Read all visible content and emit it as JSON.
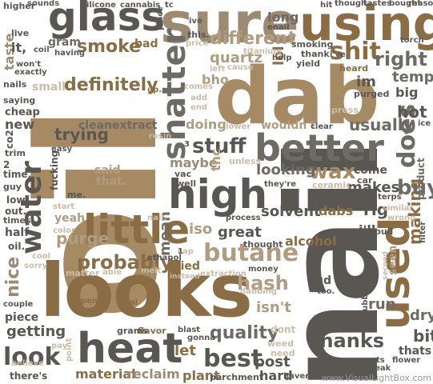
{
  "words": {
    "oil": "oil",
    "nail": "nail",
    "dab": "dab",
    "looks": "looks",
    "sure": "sure",
    "glass": "glass",
    "using": "using",
    "heat": "heat",
    "used": "used",
    "high": "high",
    "better": "better",
    "little": "little",
    "water": "water",
    "shatter": "shatter",
    "look": "look",
    "butane": "butane",
    "best": "best",
    "does": "does",
    "different": "different",
    "shit": "shit",
    "stuff": "stuff",
    "definitely": "definitely",
    "probably": "probably",
    "smoke": "smoke",
    "right": "right",
    "thanks": "thanks",
    "wax": "wax",
    "quality": "quality",
    "hash": "hash",
    "nice": "nice",
    "purge": "purge",
    "making": "making",
    "buy": "buy",
    "material": "material",
    "getting": "getting",
    "trying": "trying",
    "usually": "usually",
    "hot": "hot",
    "bit": "bit",
    "temp": "temp",
    "makes": "makes",
    "rig": "rig",
    "dabs": "dabs",
    "alcohol": "alcohol",
    "looking": "looking",
    "great": "great",
    "post": "post",
    "hard": "hard",
    "plant": "plant",
    "let": "let",
    "reclaim": "reclaim",
    "iso": "iso",
    "mean": "mean",
    "maybe": "maybe",
    "said": "said",
    "that": "that.",
    "doing": "doing",
    "bho": "bho",
    "im": "im",
    "quartz": "quartz",
    "lol": "lol",
    "long": "long",
    "gram": "gram",
    "bad": "bad",
    "clean": "clean",
    "extract": "extract",
    "solvent": "solvent",
    "dont": "dont",
    "isnt": "isn't",
    "bud": "bud",
    "run": "run",
    "dry": "dry",
    "thats": "thats",
    "piece": "piece",
    "theres": "there's",
    "wouldnt": "wouldn't",
    "new": "new",
    "taste": "taste",
    "it": "it,",
    "seen": "seen",
    "ill": "i'll",
    "tried": "tried",
    "thc": "thc",
    "yeah": "yeah",
    "half": "half",
    "out": "out.",
    "times": "times",
    "low": "low",
    "co2": "co2",
    "trim": "trim",
    "saying": "saying",
    "cheap": "cheap",
    "small": "small",
    "nails": "nails",
    "higher": "higher",
    "live": "live",
    "sounds": "sounds",
    "silicone": "silicone",
    "cannabis": "cannabis",
    "hit": "hit",
    "though": "though.",
    "tastes": "tastes",
    "bought": "bought",
    "reason": "reason",
    "torch": "torch",
    "smoking": "smoking",
    "thank": "thank",
    "ive": "i've",
    "heard": "heard",
    "purged": "purged",
    "lower": "lower",
    "clear": "clear",
    "press": "press",
    "vac": "vac",
    "well": "well",
    "unless": "unless",
    "ceramic": "ceramic",
    "theyre": "they're",
    "come": "come",
    "car": "car",
    "terps": "terps",
    "similar": "similar",
    "wrong": "wrong",
    "product": "product",
    "filter": "filter",
    "easy": "easy",
    "fucking": "fucking",
    "guy": "guy",
    "time": "time.",
    "me": "me.",
    "start": "start",
    "color": "color",
    "oil2": "oil.",
    "cool": "cool",
    "matter": "matter",
    "able": "able",
    "melt": "melt",
    "open": "open",
    "real": "real",
    "flavor": "flavor",
    "grams": "grams",
    "blast": "blast",
    "gonna": "gonna",
    "parchment": "parchment",
    "havent": "haven't",
    "worth": "worth",
    "weed": "weed",
    "need": "need",
    "bubble": "bubble",
    "couple": "couple",
    "believe": "believe",
    "point": "point",
    "pay": "pay",
    "extraction": "extraction",
    "instead": "instead",
    "ethanol": "ethanol",
    "cap": "cap",
    "nail2": "nail.",
    "thought": "thought",
    "money": "money",
    "super": "super",
    "pull": "pull",
    "dabbing": "dabbing",
    "process": "process",
    "too": "too.",
    "flower": "flower",
    "gets": "gets",
    "break": "break",
    "big": "big",
    "ice": "ice",
    "coil": "coil",
    "having": "having",
    "wont": "won't",
    "exactly": "exactly",
    "place": "place",
    "tc": "tc",
    "ive2": "ive",
    "this": "this.",
    "price": "price",
    "left": "left",
    "titanium": "titanium",
    "cause": "cause",
    "yield": "yield",
    "help": "help",
    "enail": "enail",
    "comes": "comes",
    "add": "add",
    "end": "end",
    "rosin": "rosin",
    "up": "up.",
    "sorry": "sorry",
    "second": "second",
    "e": "e",
    "three": "3",
    "two": "2",
    "one": "1"
  },
  "watermark": "www.VisualLightBox.com"
}
